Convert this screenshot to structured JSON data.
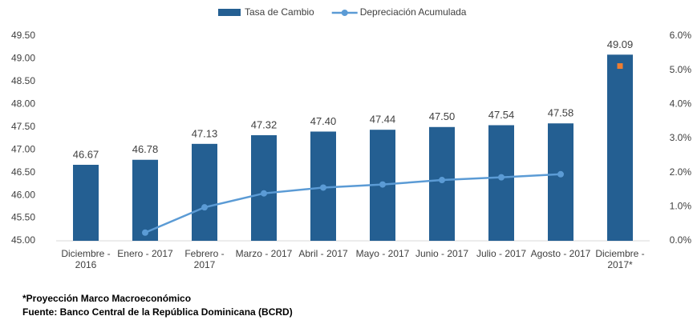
{
  "chart_data": {
    "type": "bar",
    "categories": [
      "Diciembre - 2016",
      "Enero - 2017",
      "Febrero - 2017",
      "Marzo - 2017",
      "Abril - 2017",
      "Mayo - 2017",
      "Junio - 2017",
      "Julio - 2017",
      "Agosto - 2017",
      "Diciembre - 2017*"
    ],
    "series": [
      {
        "name": "Tasa de Cambio",
        "type": "bar",
        "color": "#245f92",
        "values": [
          46.67,
          46.78,
          47.13,
          47.32,
          47.4,
          47.44,
          47.5,
          47.54,
          47.58,
          49.09
        ],
        "value_labels": [
          "46.67",
          "46.78",
          "47.13",
          "47.32",
          "47.40",
          "47.44",
          "47.50",
          "47.54",
          "47.58",
          "49.09"
        ]
      },
      {
        "name": "Depreciación Acumulada",
        "type": "line",
        "axis": "y2",
        "color": "#5b9bd5",
        "values": [
          null,
          0.24,
          0.98,
          1.39,
          1.56,
          1.65,
          1.78,
          1.86,
          1.95,
          null
        ]
      }
    ],
    "highlight": {
      "category": "Diciembre - 2017*",
      "value": 5.12,
      "color": "#ed7d31"
    },
    "ylim": [
      45,
      49.5
    ],
    "yticks": [
      {
        "value": 45,
        "label": "45.00"
      },
      {
        "value": 45.5,
        "label": "45.50"
      },
      {
        "value": 46,
        "label": "46.00"
      },
      {
        "value": 46.5,
        "label": "46.50"
      },
      {
        "value": 47,
        "label": "47.00"
      },
      {
        "value": 47.5,
        "label": "47.50"
      },
      {
        "value": 48,
        "label": "48.00"
      },
      {
        "value": 48.5,
        "label": "48.50"
      },
      {
        "value": 49,
        "label": "49.00"
      },
      {
        "value": 49.5,
        "label": "49.50"
      }
    ],
    "y2lim": [
      0,
      6
    ],
    "y2ticks": [
      {
        "value": 0,
        "label": "0.0%"
      },
      {
        "value": 1,
        "label": "1.0%"
      },
      {
        "value": 2,
        "label": "2.0%"
      },
      {
        "value": 3,
        "label": "3.0%"
      },
      {
        "value": 4,
        "label": "4.0%"
      },
      {
        "value": 5,
        "label": "5.0%"
      },
      {
        "value": 6,
        "label": "6.0%"
      }
    ],
    "notes": [
      "*Proyección Marco Macroeconómico",
      "Fuente: Banco Central de la República Dominicana (BCRD)"
    ]
  }
}
